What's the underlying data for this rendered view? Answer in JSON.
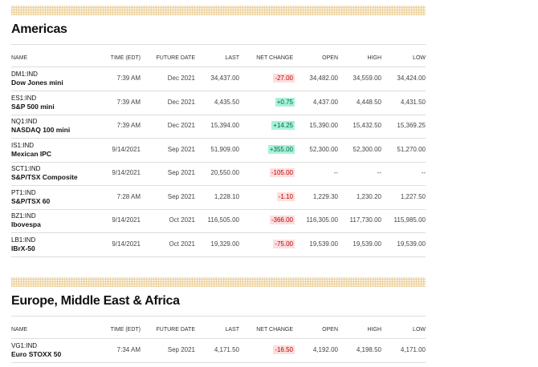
{
  "sections": [
    {
      "title": "Americas",
      "headers": [
        "NAME",
        "TIME (EDT)",
        "FUTURE DATE",
        "LAST",
        "NET CHANGE",
        "OPEN",
        "HIGH",
        "LOW"
      ],
      "rows": [
        [
          "DM1:IND",
          "Dow Jones mini",
          "7:39 AM",
          "Dec 2021",
          "34,437.00",
          "-27.00",
          "34,482.00",
          "34,559.00",
          "34,424.00"
        ],
        [
          "ES1:IND",
          "S&P 500 mini",
          "7:39 AM",
          "Dec 2021",
          "4,435.50",
          "+0.75",
          "4,437.00",
          "4,448.50",
          "4,431.50"
        ],
        [
          "NQ1:IND",
          "NASDAQ 100 mini",
          "7:39 AM",
          "Dec 2021",
          "15,394.00",
          "+14.25",
          "15,390.00",
          "15,432.50",
          "15,369.25"
        ],
        [
          "IS1:IND",
          "Mexican IPC",
          "9/14/2021",
          "Sep 2021",
          "51,909.00",
          "+355.00",
          "52,300.00",
          "52,300.00",
          "51,270.00"
        ],
        [
          "SCT1:IND",
          "S&P/TSX Composite",
          "9/14/2021",
          "Sep 2021",
          "20,550.00",
          "-105.00",
          "--",
          "--",
          "--"
        ],
        [
          "PT1:IND",
          "S&P/TSX 60",
          "7:28 AM",
          "Sep 2021",
          "1,228.10",
          "-1.10",
          "1,229.30",
          "1,230.20",
          "1,227.50"
        ],
        [
          "BZ1:IND",
          "Ibovespa",
          "9/14/2021",
          "Oct 2021",
          "116,505.00",
          "-366.00",
          "116,305.00",
          "117,730.00",
          "115,985.00"
        ],
        [
          "LB1:IND",
          "IBrX-50",
          "9/14/2021",
          "Oct 2021",
          "19,329.00",
          "-75.00",
          "19,539.00",
          "19,539.00",
          "19,539.00"
        ]
      ]
    },
    {
      "title": "Europe, Middle East & Africa",
      "headers": [
        "NAME",
        "TIME (EDT)",
        "FUTURE DATE",
        "LAST",
        "NET CHANGE",
        "OPEN",
        "HIGH",
        "LOW"
      ],
      "rows": [
        [
          "VG1:IND",
          "Euro STOXX 50",
          "7:34 AM",
          "Sep 2021",
          "4,171.50",
          "-16.50",
          "4,192.00",
          "4,198.50",
          "4,171.00"
        ]
      ]
    }
  ]
}
